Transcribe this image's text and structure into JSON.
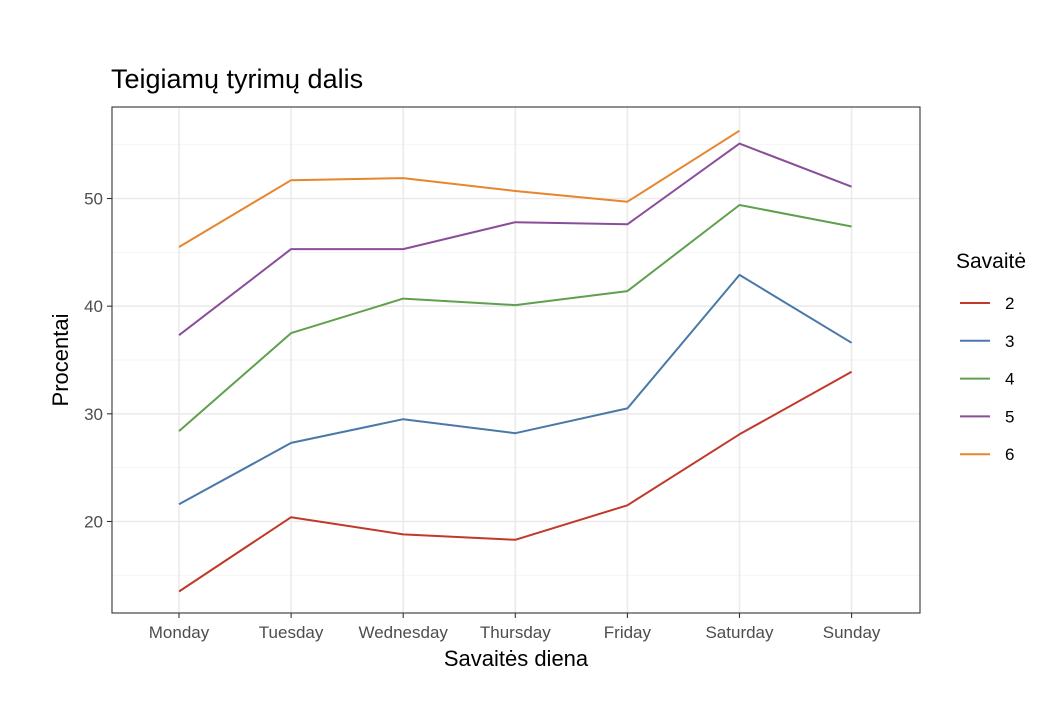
{
  "chart_data": {
    "type": "line",
    "title": "Teigiamų tyrimų dalis",
    "xlabel": "Savaitės diena",
    "ylabel": "Procentai",
    "categories": [
      "Monday",
      "Tuesday",
      "Wednesday",
      "Thursday",
      "Friday",
      "Saturday",
      "Sunday"
    ],
    "ylim": [
      11.5,
      58.5
    ],
    "yticks": [
      20,
      30,
      40,
      50
    ],
    "yticks_labels": [
      "20",
      "30",
      "40",
      "50"
    ],
    "grid": true,
    "legend": {
      "title": "Savaitė",
      "position": "right"
    },
    "series": [
      {
        "name": "2",
        "color": "#c0392b",
        "values": [
          13.5,
          20.4,
          18.8,
          18.3,
          21.5,
          28.1,
          33.9
        ]
      },
      {
        "name": "3",
        "color": "#4a78a8",
        "values": [
          21.6,
          27.3,
          29.5,
          28.2,
          30.5,
          42.9,
          36.6
        ]
      },
      {
        "name": "4",
        "color": "#5fa04e",
        "values": [
          28.4,
          37.5,
          40.7,
          40.1,
          41.4,
          49.4,
          47.4
        ]
      },
      {
        "name": "5",
        "color": "#8a4e99",
        "values": [
          37.3,
          45.3,
          45.3,
          47.8,
          47.6,
          55.1,
          51.1
        ]
      },
      {
        "name": "6",
        "color": "#e6862e",
        "values": [
          45.5,
          51.7,
          51.9,
          50.7,
          49.7,
          56.3,
          null
        ]
      }
    ]
  }
}
